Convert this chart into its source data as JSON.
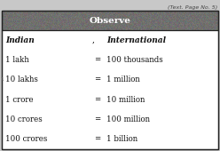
{
  "title": "Observe",
  "col1_header": "Indian",
  "col2_header": "International",
  "rows": [
    [
      "1 lakh",
      "=",
      "100 thousands"
    ],
    [
      "10 lakhs",
      "=",
      "1 million"
    ],
    [
      "1 crore",
      "=",
      "10 million"
    ],
    [
      "10 crores",
      "=",
      "100 million"
    ],
    [
      "100 crores",
      "=",
      "1 billion"
    ]
  ],
  "title_fontsize": 7.5,
  "header_fontsize": 6.5,
  "row_fontsize": 6.2,
  "header_bg": "#7a7a7a",
  "body_bg": "#ffffff",
  "fig_bg": "#c8c8c8",
  "border_color": "#222222",
  "text_color": "#111111",
  "caption": "(Text. Page No. 5)"
}
